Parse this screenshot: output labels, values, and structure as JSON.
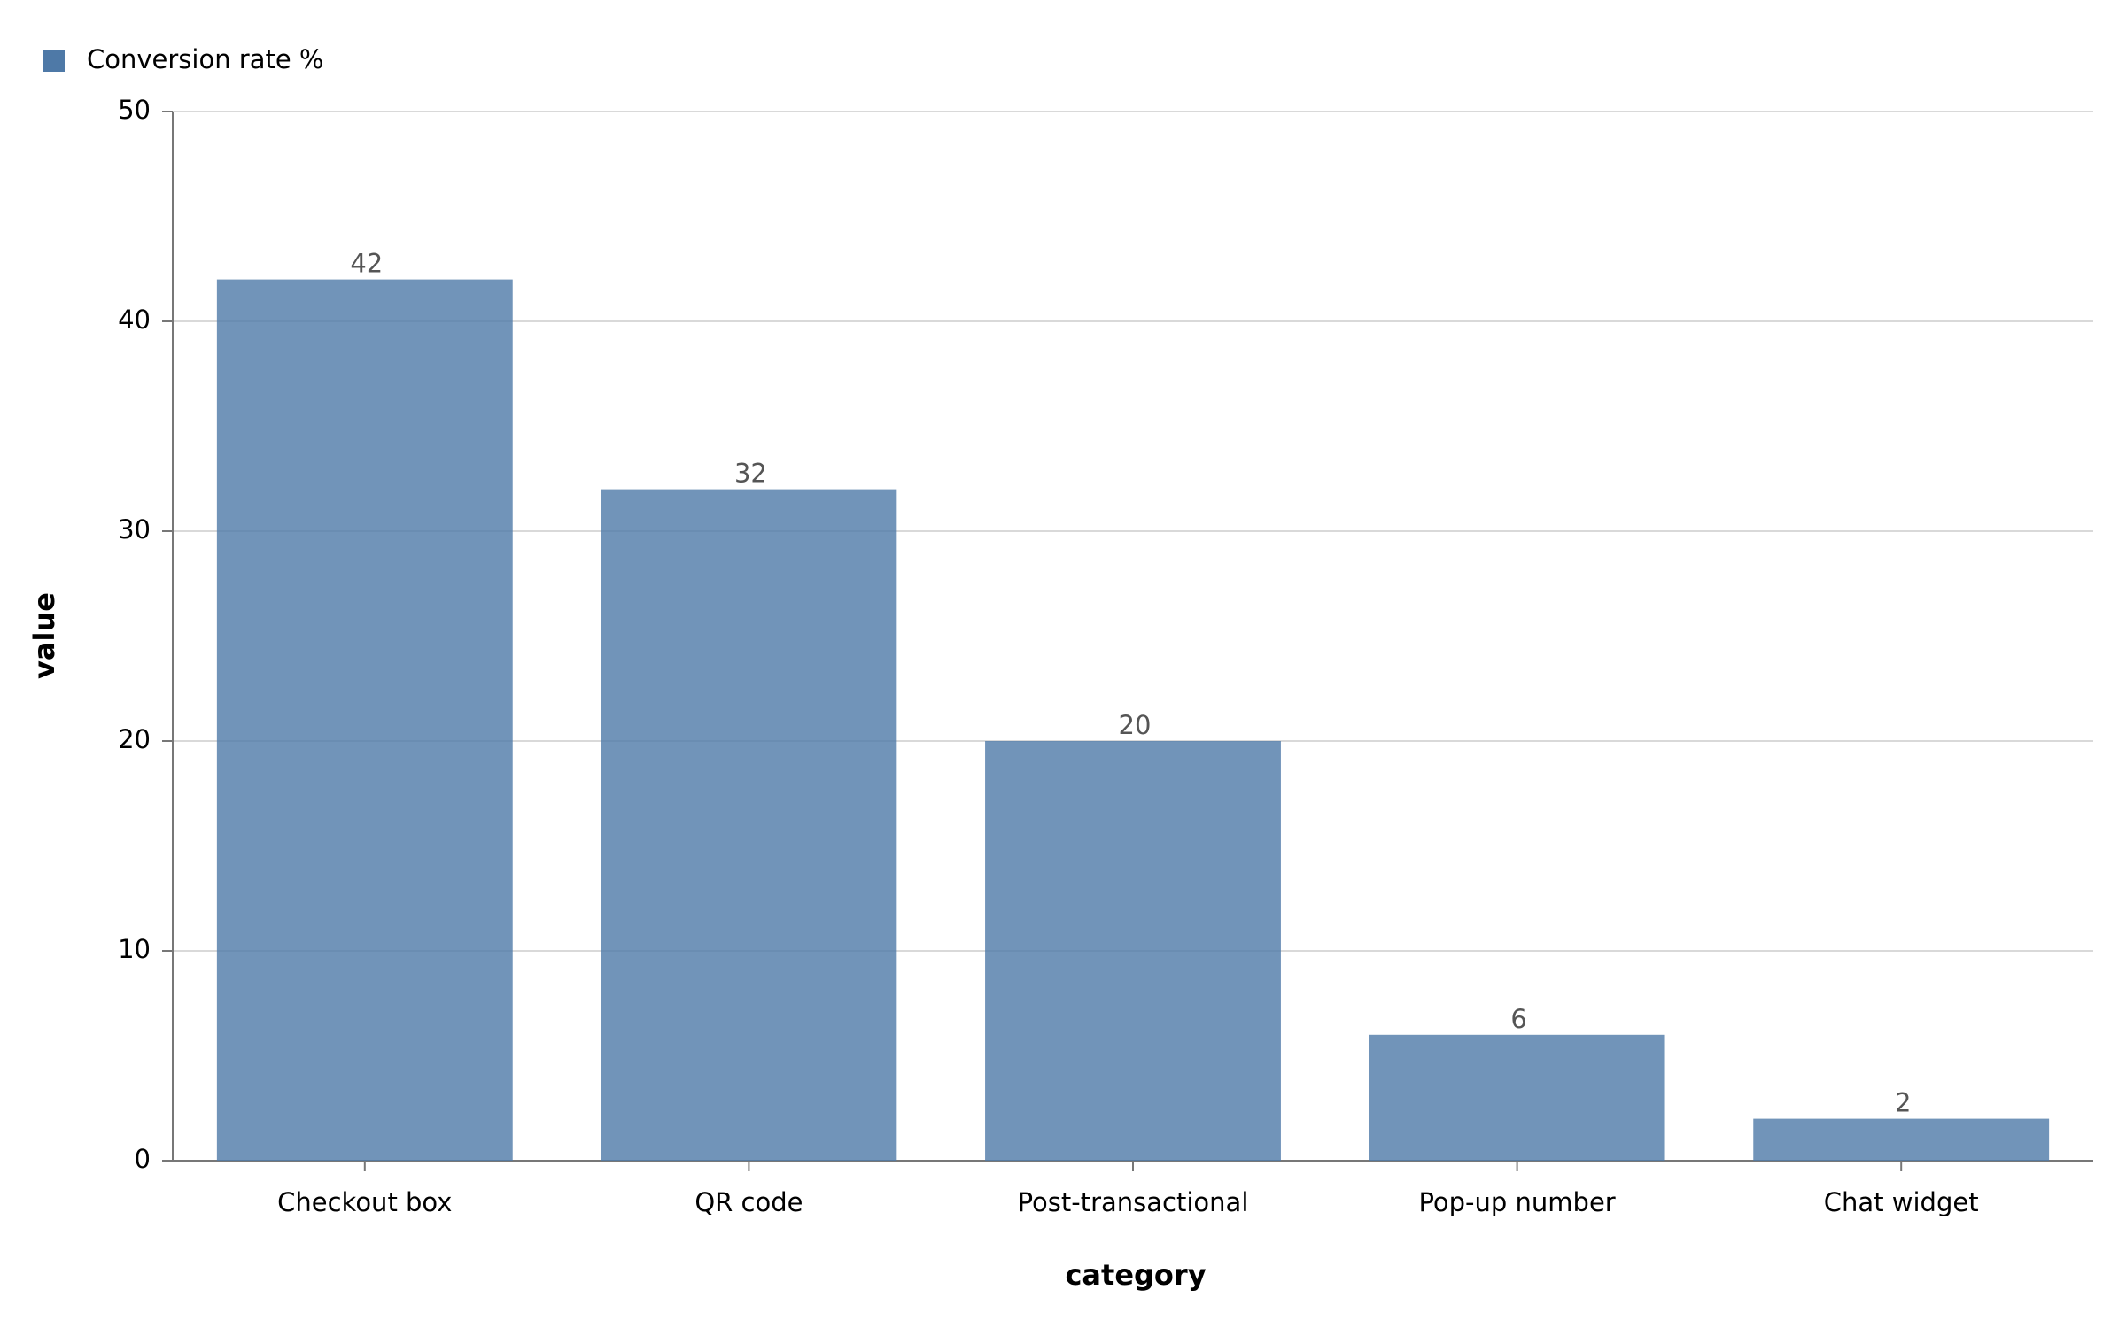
{
  "chart_data": {
    "type": "bar",
    "x_label": "category",
    "y_label": "value",
    "categories": [
      "Checkout box",
      "QR code",
      "Post-transactional",
      "Pop-up number",
      "Chat widget"
    ],
    "series": [
      {
        "name": "Conversion rate %",
        "color": "#4e79a7",
        "values": [
          42,
          32,
          20,
          6,
          2
        ]
      }
    ],
    "ylim": [
      0,
      50
    ],
    "yticks": [
      0,
      10,
      20,
      30,
      40,
      50
    ],
    "grid": true,
    "legend": "top-left"
  }
}
